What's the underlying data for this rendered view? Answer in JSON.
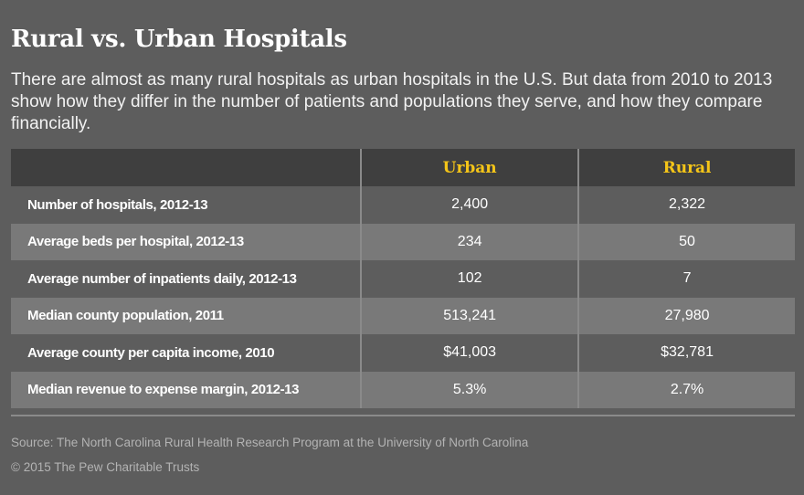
{
  "header": {
    "title": "Rural vs. Urban Hospitals",
    "subtitle": "There are almost as many rural hospitals as urban hospitals in the U.S. But data from 2010 to 2013 show how they differ in the number of patients and populations they serve, and how they compare financially."
  },
  "chart_data": {
    "type": "table",
    "title": "Rural vs. Urban Hospitals",
    "columns": [
      "",
      "Urban",
      "Rural"
    ],
    "rows": [
      {
        "label": "Number of hospitals, 2012-13",
        "urban": "2,400",
        "rural": "2,322"
      },
      {
        "label": "Average beds per hospital, 2012-13",
        "urban": "234",
        "rural": "50"
      },
      {
        "label": "Average number of inpatients daily, 2012-13",
        "urban": "102",
        "rural": "7"
      },
      {
        "label": "Median county population, 2011",
        "urban": "513,241",
        "rural": "27,980"
      },
      {
        "label": "Average county per capita income, 2010",
        "urban": "$41,003",
        "rural": "$32,781"
      },
      {
        "label": "Median revenue to expense margin, 2012-13",
        "urban": "5.3%",
        "rural": "2.7%"
      }
    ]
  },
  "footer": {
    "source": "Source: The North Carolina Rural Health Research Program at the University of North Carolina",
    "copyright": "© 2015 The Pew Charitable Trusts"
  },
  "colors": {
    "background": "#5d5d5d",
    "header_bg": "#3f3f3f",
    "accent": "#f5c518",
    "stripe": "#797979"
  }
}
